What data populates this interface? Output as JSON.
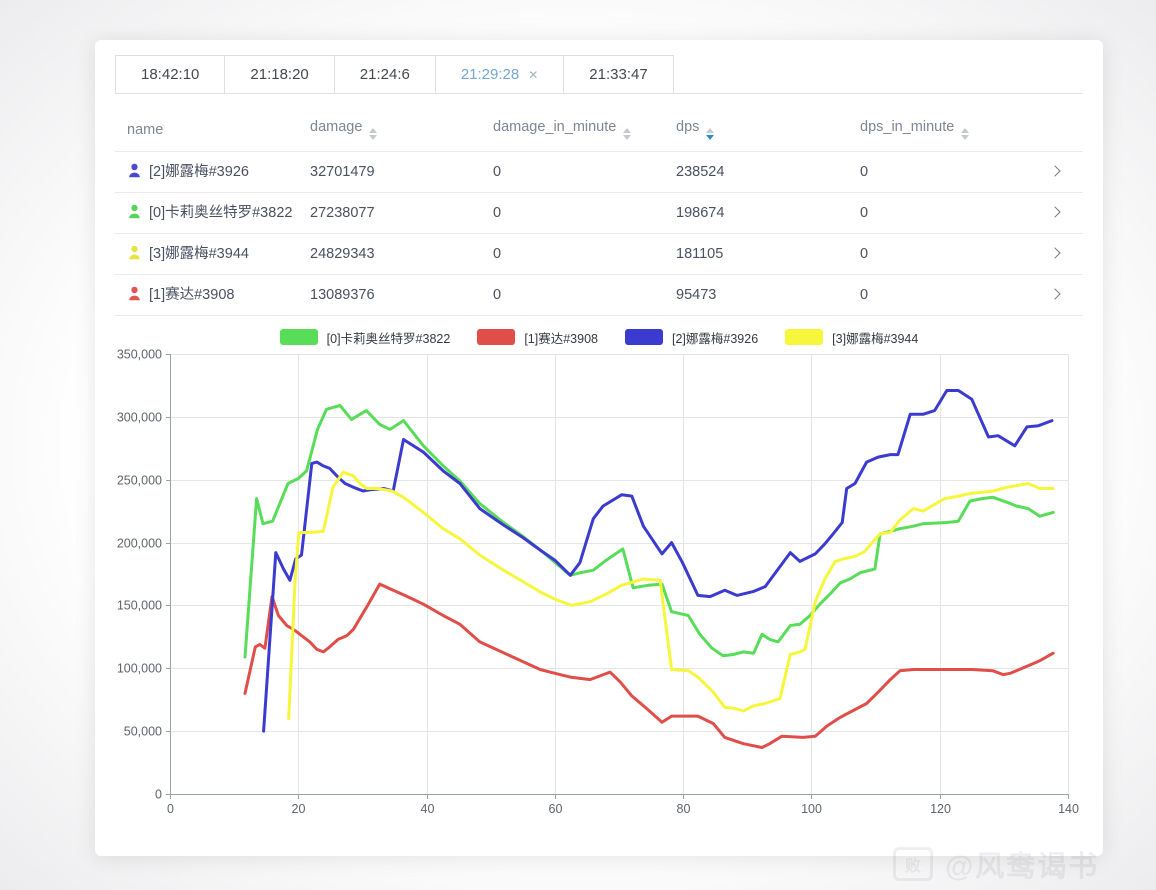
{
  "tabs": [
    {
      "label": "18:42:10",
      "active": false,
      "closable": false
    },
    {
      "label": "21:18:20",
      "active": false,
      "closable": false
    },
    {
      "label": "21:24:6",
      "active": false,
      "closable": false
    },
    {
      "label": "21:29:28",
      "active": true,
      "closable": true
    },
    {
      "label": "21:33:47",
      "active": false,
      "closable": false
    }
  ],
  "close_glyph": "✕",
  "table": {
    "headers": [
      {
        "key": "name",
        "label": "name",
        "sortable": false,
        "sort": null
      },
      {
        "key": "damage",
        "label": "damage",
        "sortable": true,
        "sort": null
      },
      {
        "key": "damage_in_minute",
        "label": "damage_in_minute",
        "sortable": true,
        "sort": null
      },
      {
        "key": "dps",
        "label": "dps",
        "sortable": true,
        "sort": "desc"
      },
      {
        "key": "dps_in_minute",
        "label": "dps_in_minute",
        "sortable": true,
        "sort": null
      }
    ],
    "rows": [
      {
        "icon_color": "#4a49cf",
        "name": "[2]娜露梅#3926",
        "damage": "32701479",
        "damage_in_minute": "0",
        "dps": "238524",
        "dps_in_minute": "0"
      },
      {
        "icon_color": "#55d45c",
        "name": "[0]卡莉奥丝特罗#3822",
        "damage": "27238077",
        "damage_in_minute": "0",
        "dps": "198674",
        "dps_in_minute": "0"
      },
      {
        "icon_color": "#e7e33e",
        "name": "[3]娜露梅#3944",
        "damage": "24829343",
        "damage_in_minute": "0",
        "dps": "181105",
        "dps_in_minute": "0"
      },
      {
        "icon_color": "#e25352",
        "name": "[1]赛达#3908",
        "damage": "13089376",
        "damage_in_minute": "0",
        "dps": "95473",
        "dps_in_minute": "0"
      }
    ]
  },
  "chart_data": {
    "type": "line",
    "title": "",
    "xlabel": "",
    "ylabel": "",
    "xlim": [
      0,
      140
    ],
    "ylim": [
      0,
      350000
    ],
    "x_ticks": [
      0,
      20,
      40,
      60,
      80,
      100,
      120,
      140
    ],
    "y_ticks": [
      0,
      50000,
      100000,
      150000,
      200000,
      250000,
      300000,
      350000
    ],
    "grid": true,
    "legend_position": "top",
    "series": [
      {
        "name": "[0]卡莉奥丝特罗#3822",
        "color": "#58dd58",
        "points": [
          [
            11.7,
            109000
          ],
          [
            13.5,
            235000
          ],
          [
            14.5,
            215000
          ],
          [
            16,
            217000
          ],
          [
            18.4,
            247000
          ],
          [
            20,
            251000
          ],
          [
            21.3,
            257000
          ],
          [
            23,
            290000
          ],
          [
            24.4,
            306000
          ],
          [
            26.5,
            309000
          ],
          [
            28.3,
            298000
          ],
          [
            30.6,
            305000
          ],
          [
            32.7,
            294000
          ],
          [
            34.3,
            290000
          ],
          [
            36.4,
            297000
          ],
          [
            39.5,
            277000
          ],
          [
            42.6,
            261000
          ],
          [
            45.2,
            249000
          ],
          [
            48.3,
            231000
          ],
          [
            52,
            216000
          ],
          [
            55,
            205000
          ],
          [
            58,
            193000
          ],
          [
            62.4,
            174000
          ],
          [
            64,
            176000
          ],
          [
            66,
            178000
          ],
          [
            68,
            186000
          ],
          [
            70.6,
            195000
          ],
          [
            72.2,
            164000
          ],
          [
            74.5,
            166000
          ],
          [
            76.7,
            167000
          ],
          [
            78.2,
            145000
          ],
          [
            80.8,
            142000
          ],
          [
            82.6,
            127000
          ],
          [
            84.5,
            116000
          ],
          [
            86.2,
            110000
          ],
          [
            87.8,
            111000
          ],
          [
            89.4,
            113000
          ],
          [
            91,
            112000
          ],
          [
            92.3,
            127000
          ],
          [
            93.5,
            123000
          ],
          [
            94.8,
            121000
          ],
          [
            96.7,
            134000
          ],
          [
            98.2,
            135000
          ],
          [
            99.8,
            142000
          ],
          [
            101.3,
            151000
          ],
          [
            102.9,
            159000
          ],
          [
            104.5,
            168000
          ],
          [
            106,
            171000
          ],
          [
            107.6,
            176000
          ],
          [
            109.9,
            179000
          ],
          [
            110.7,
            207000
          ],
          [
            112.3,
            209000
          ],
          [
            113.8,
            211000
          ],
          [
            115.9,
            213000
          ],
          [
            117.4,
            215000
          ],
          [
            121.1,
            216000
          ],
          [
            122.9,
            217000
          ],
          [
            124.7,
            233000
          ],
          [
            126.6,
            235000
          ],
          [
            128.3,
            236000
          ],
          [
            130.5,
            232000
          ],
          [
            132,
            229000
          ],
          [
            133.8,
            227000
          ],
          [
            135.6,
            221000
          ],
          [
            137.7,
            224000
          ]
        ]
      },
      {
        "name": "[1]赛达#3908",
        "color": "#df4e48",
        "points": [
          [
            11.7,
            80000
          ],
          [
            13.3,
            117000
          ],
          [
            14,
            119000
          ],
          [
            14.8,
            116000
          ],
          [
            15.9,
            157000
          ],
          [
            16.9,
            142000
          ],
          [
            18.2,
            134000
          ],
          [
            19.5,
            130000
          ],
          [
            20.5,
            126000
          ],
          [
            21.8,
            121000
          ],
          [
            22.9,
            115000
          ],
          [
            23.9,
            113000
          ],
          [
            24.9,
            117000
          ],
          [
            26.2,
            123000
          ],
          [
            27.6,
            126000
          ],
          [
            28.6,
            131000
          ],
          [
            30.7,
            149000
          ],
          [
            32.7,
            167000
          ],
          [
            34.8,
            162000
          ],
          [
            36.6,
            158000
          ],
          [
            39.5,
            151000
          ],
          [
            42.6,
            142000
          ],
          [
            45.2,
            135000
          ],
          [
            48.3,
            121000
          ],
          [
            53,
            110000
          ],
          [
            57.7,
            99000
          ],
          [
            60,
            96000
          ],
          [
            62.4,
            93000
          ],
          [
            65.5,
            91000
          ],
          [
            68.6,
            97000
          ],
          [
            70.2,
            89000
          ],
          [
            72,
            78000
          ],
          [
            74.3,
            68000
          ],
          [
            76.7,
            57000
          ],
          [
            78.2,
            62000
          ],
          [
            80,
            62000
          ],
          [
            82.3,
            62000
          ],
          [
            84.7,
            56000
          ],
          [
            86.5,
            45000
          ],
          [
            89.4,
            40000
          ],
          [
            92.3,
            37000
          ],
          [
            93.5,
            40000
          ],
          [
            95.4,
            46000
          ],
          [
            98.7,
            45000
          ],
          [
            100.6,
            46000
          ],
          [
            102.4,
            54000
          ],
          [
            104.5,
            61000
          ],
          [
            107.1,
            68000
          ],
          [
            108.6,
            72000
          ],
          [
            110.4,
            81000
          ],
          [
            112.3,
            91000
          ],
          [
            113.8,
            98000
          ],
          [
            115.9,
            99000
          ],
          [
            125,
            99000
          ],
          [
            128.3,
            98000
          ],
          [
            129.9,
            95000
          ],
          [
            131,
            96000
          ],
          [
            133.8,
            102000
          ],
          [
            135.6,
            106000
          ],
          [
            137.7,
            112000
          ]
        ]
      },
      {
        "name": "[2]娜露梅#3926",
        "color": "#3b3bd0",
        "points": [
          [
            14.6,
            50000
          ],
          [
            16.5,
            192000
          ],
          [
            17.7,
            179000
          ],
          [
            18.7,
            170000
          ],
          [
            19.6,
            187000
          ],
          [
            20.5,
            190000
          ],
          [
            22.1,
            263000
          ],
          [
            22.9,
            264000
          ],
          [
            23.9,
            261000
          ],
          [
            24.9,
            259000
          ],
          [
            26.2,
            252000
          ],
          [
            27.3,
            247000
          ],
          [
            28.6,
            244000
          ],
          [
            30.1,
            241000
          ],
          [
            31.2,
            242000
          ],
          [
            33.3,
            243000
          ],
          [
            34.8,
            241000
          ],
          [
            36.4,
            282000
          ],
          [
            39.5,
            272000
          ],
          [
            42.6,
            257000
          ],
          [
            45.2,
            247000
          ],
          [
            48.3,
            227000
          ],
          [
            52,
            214000
          ],
          [
            55,
            204000
          ],
          [
            58,
            193000
          ],
          [
            60,
            186000
          ],
          [
            62.4,
            174000
          ],
          [
            63.9,
            184000
          ],
          [
            66,
            219000
          ],
          [
            67.5,
            229000
          ],
          [
            70.4,
            238000
          ],
          [
            72,
            237000
          ],
          [
            73.8,
            213000
          ],
          [
            76.7,
            191000
          ],
          [
            78.2,
            200000
          ],
          [
            79.9,
            184000
          ],
          [
            82.3,
            158000
          ],
          [
            84.2,
            157000
          ],
          [
            86.5,
            162000
          ],
          [
            88.4,
            158000
          ],
          [
            90.9,
            161000
          ],
          [
            92.8,
            165000
          ],
          [
            96.7,
            192000
          ],
          [
            98.2,
            185000
          ],
          [
            100.6,
            191000
          ],
          [
            102.1,
            199000
          ],
          [
            103.4,
            207000
          ],
          [
            104.8,
            216000
          ],
          [
            105.5,
            243000
          ],
          [
            106.8,
            247000
          ],
          [
            108.6,
            264000
          ],
          [
            110.4,
            268000
          ],
          [
            112.3,
            270000
          ],
          [
            113.5,
            270000
          ],
          [
            115.4,
            302000
          ],
          [
            117.4,
            302000
          ],
          [
            119.2,
            305000
          ],
          [
            121.1,
            321000
          ],
          [
            122.9,
            321000
          ],
          [
            125,
            314000
          ],
          [
            127.6,
            284000
          ],
          [
            129.1,
            285000
          ],
          [
            131.7,
            277000
          ],
          [
            133.6,
            292000
          ],
          [
            135.4,
            293000
          ],
          [
            137.5,
            297000
          ]
        ]
      },
      {
        "name": "[3]娜露梅#3944",
        "color": "#f6f63c",
        "points": [
          [
            18.5,
            60000
          ],
          [
            19.5,
            170000
          ],
          [
            20.1,
            208000
          ],
          [
            22,
            208000
          ],
          [
            23.9,
            209000
          ],
          [
            25.4,
            244000
          ],
          [
            27,
            256000
          ],
          [
            28.6,
            253000
          ],
          [
            29.6,
            247000
          ],
          [
            30.7,
            243000
          ],
          [
            32.5,
            243000
          ],
          [
            34.6,
            241000
          ],
          [
            36.4,
            236000
          ],
          [
            39.5,
            224000
          ],
          [
            42.6,
            211000
          ],
          [
            45.2,
            203000
          ],
          [
            48.3,
            190000
          ],
          [
            52,
            178000
          ],
          [
            55,
            169000
          ],
          [
            58,
            160000
          ],
          [
            60,
            155000
          ],
          [
            62.6,
            150000
          ],
          [
            65.5,
            153000
          ],
          [
            68,
            159000
          ],
          [
            70.4,
            166000
          ],
          [
            73.8,
            171000
          ],
          [
            76.4,
            170000
          ],
          [
            78.2,
            99000
          ],
          [
            80.8,
            98000
          ],
          [
            82.3,
            93000
          ],
          [
            84.7,
            81000
          ],
          [
            86.5,
            69000
          ],
          [
            88.1,
            68000
          ],
          [
            89.4,
            66000
          ],
          [
            90.9,
            70000
          ],
          [
            92.8,
            72000
          ],
          [
            95.1,
            76000
          ],
          [
            96.7,
            111000
          ],
          [
            98.2,
            113000
          ],
          [
            99,
            115000
          ],
          [
            100.6,
            153000
          ],
          [
            102.1,
            171000
          ],
          [
            103.7,
            185000
          ],
          [
            105,
            187000
          ],
          [
            106.8,
            189000
          ],
          [
            108.3,
            193000
          ],
          [
            110.7,
            207000
          ],
          [
            112.3,
            208000
          ],
          [
            113.8,
            218000
          ],
          [
            115.9,
            227000
          ],
          [
            117.4,
            225000
          ],
          [
            120.8,
            235000
          ],
          [
            122.9,
            237000
          ],
          [
            124.7,
            239000
          ],
          [
            126.6,
            240000
          ],
          [
            128.3,
            241000
          ],
          [
            130.5,
            244000
          ],
          [
            133.8,
            247000
          ],
          [
            135.6,
            243000
          ],
          [
            137.7,
            243000
          ]
        ]
      }
    ]
  },
  "watermark": {
    "icon_label": "败",
    "text": "@风鸯谒书"
  }
}
